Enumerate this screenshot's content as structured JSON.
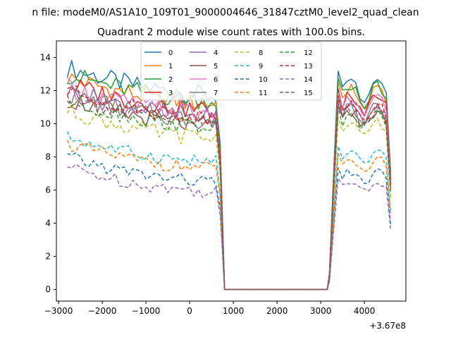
{
  "suptitle": "n file: modeM0/AS1A10_109T01_9000004646_31847cztM0_level2_quad_clean",
  "chart_data": {
    "type": "line",
    "title": "Quadrant 2 module wise count rates with 100.0s bins.",
    "xlabel": "",
    "ylabel": "",
    "x_offset_label": "+3.67e8",
    "xlim": [
      -3050,
      4950
    ],
    "ylim": [
      -0.7,
      15.0
    ],
    "x_ticks": [
      -3000,
      -2000,
      -1000,
      0,
      1000,
      2000,
      3000,
      4000
    ],
    "x_tick_labels": [
      "−3000",
      "−2000",
      "−1000",
      "0",
      "1000",
      "2000",
      "3000",
      "4000"
    ],
    "y_ticks": [
      0,
      2,
      4,
      6,
      8,
      10,
      12,
      14
    ],
    "y_tick_labels": [
      "0",
      "2",
      "4",
      "6",
      "8",
      "10",
      "12",
      "14"
    ],
    "grid": false,
    "legend_position": "top-center",
    "legend_columns": 4,
    "x_start": -2800,
    "x_step": 100,
    "gap_start": 800,
    "gap_end": 3150,
    "post_gap_x": [
      3200,
      3300,
      3400,
      3500,
      3600,
      3700,
      3800,
      3900,
      4000,
      4100,
      4200,
      4300,
      4400,
      4500,
      4600
    ],
    "series": [
      {
        "name": "0",
        "color": "#1f77b4",
        "dashed": false,
        "level": 12.2,
        "drift": -0.5,
        "spread": 0.6
      },
      {
        "name": "1",
        "color": "#ff7f0e",
        "dashed": false,
        "level": 11.6,
        "drift": -0.4,
        "spread": 0.6
      },
      {
        "name": "2",
        "color": "#2ca02c",
        "dashed": false,
        "level": 11.8,
        "drift": -0.4,
        "spread": 0.6
      },
      {
        "name": "3",
        "color": "#d62728",
        "dashed": false,
        "level": 11.2,
        "drift": -0.4,
        "spread": 0.6
      },
      {
        "name": "4",
        "color": "#9467bd",
        "dashed": false,
        "level": 10.8,
        "drift": -0.4,
        "spread": 0.6
      },
      {
        "name": "5",
        "color": "#8c564b",
        "dashed": false,
        "level": 10.3,
        "drift": -0.4,
        "spread": 0.6
      },
      {
        "name": "6",
        "color": "#e377c2",
        "dashed": false,
        "level": 11.0,
        "drift": -0.4,
        "spread": 0.6
      },
      {
        "name": "7",
        "color": "#7f7f7f",
        "dashed": false,
        "level": 10.6,
        "drift": -0.4,
        "spread": 0.6
      },
      {
        "name": "8",
        "color": "#bcbd22",
        "dashed": true,
        "level": 9.6,
        "drift": -0.5,
        "spread": 0.5
      },
      {
        "name": "9",
        "color": "#17becf",
        "dashed": true,
        "level": 8.0,
        "drift": -0.3,
        "spread": 0.4
      },
      {
        "name": "10",
        "color": "#1f77b4",
        "dashed": true,
        "level": 6.8,
        "drift": -0.3,
        "spread": 0.4
      },
      {
        "name": "11",
        "color": "#ff7f0e",
        "dashed": true,
        "level": 7.6,
        "drift": -0.3,
        "spread": 0.4
      },
      {
        "name": "12",
        "color": "#2ca02c",
        "dashed": true,
        "level": 10.2,
        "drift": -0.4,
        "spread": 0.5
      },
      {
        "name": "13",
        "color": "#d62728",
        "dashed": true,
        "level": 10.8,
        "drift": -0.4,
        "spread": 0.5
      },
      {
        "name": "14",
        "color": "#9467bd",
        "dashed": true,
        "level": 6.2,
        "drift": -0.3,
        "spread": 0.4
      },
      {
        "name": "15",
        "color": "#8c564b",
        "dashed": true,
        "level": 10.4,
        "drift": -0.4,
        "spread": 0.5
      }
    ]
  }
}
